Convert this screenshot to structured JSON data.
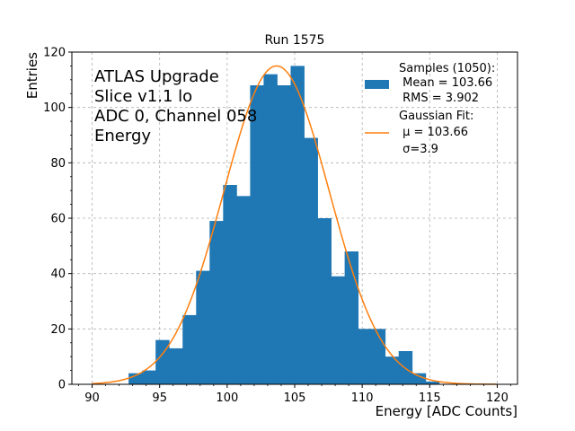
{
  "chart_data": {
    "type": "bar",
    "title": "Run 1575",
    "xlabel": "Energy [ADC Counts]",
    "ylabel": "Entries",
    "xlim": [
      88.5,
      121.5
    ],
    "ylim": [
      0,
      120
    ],
    "xticks": [
      90,
      95,
      100,
      105,
      110,
      115,
      120
    ],
    "yticks": [
      0,
      20,
      40,
      60,
      80,
      100,
      120
    ],
    "grid": true,
    "bin_width": 1,
    "bin_starts": [
      92.7,
      93.7,
      94.7,
      95.7,
      96.7,
      97.7,
      98.7,
      99.7,
      100.7,
      101.7,
      102.7,
      103.7,
      104.7,
      105.7,
      106.7,
      107.7,
      108.7,
      109.7,
      110.7,
      111.7,
      112.7,
      113.7,
      114.7
    ],
    "values": [
      4,
      5,
      16,
      13,
      25,
      41,
      59,
      72,
      68,
      108,
      112,
      108,
      115,
      89,
      60,
      39,
      48,
      20,
      20,
      10,
      12,
      4,
      1
    ],
    "bar_color": "#1f77b4",
    "fit": {
      "type": "gaussian",
      "color": "#ff7f0e",
      "amplitude": 115,
      "mu": 103.66,
      "sigma": 3.9,
      "x_range": [
        90,
        120
      ]
    },
    "annotation_lines": [
      "ATLAS Upgrade",
      "Slice v1.1 lo",
      "ADC 0, Channel 058",
      "Energy"
    ],
    "legend": {
      "position": "top-right",
      "samples": [
        "Samples (1050):",
        " Mean = 103.66",
        " RMS = 3.902"
      ],
      "fit": [
        "Gaussian Fit:",
        " μ = 103.66",
        " σ=3.9"
      ]
    }
  }
}
